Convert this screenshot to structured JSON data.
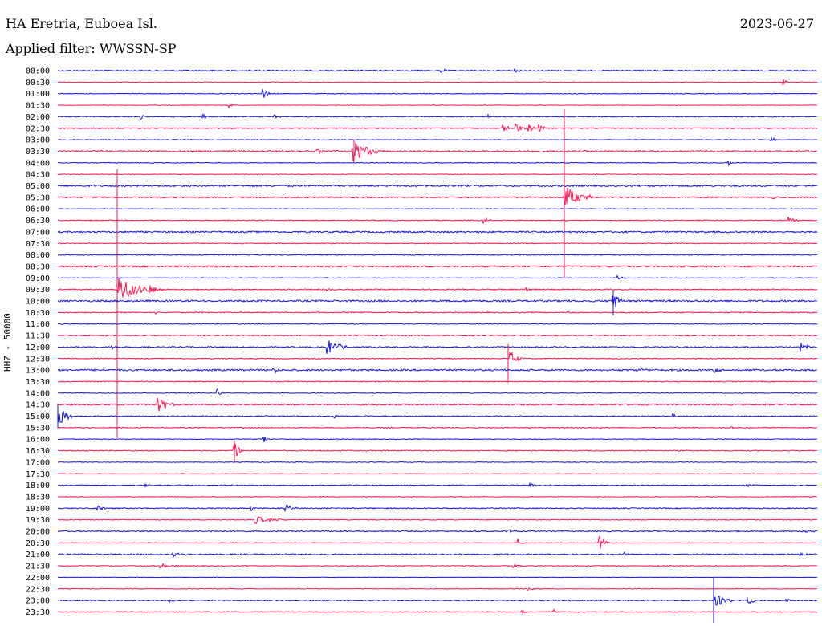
{
  "header": {
    "station": "HA Eretria, Euboea Isl.",
    "date": "2023-06-27",
    "filter": "Applied filter: WWSSN-SP"
  },
  "channel_label": "HHZ - 50000",
  "colors": {
    "even_row": "#1414dc",
    "odd_row": "#ff1450",
    "text": "#000000",
    "background": "#ffffff"
  },
  "chart_data": {
    "type": "line",
    "title": "HA Eretria, Euboea Isl.",
    "ylabel": "HHZ - 50000",
    "grid": false,
    "rows": [
      "00:00",
      "00:30",
      "01:00",
      "01:30",
      "02:00",
      "02:30",
      "03:00",
      "03:30",
      "04:00",
      "04:30",
      "05:00",
      "05:30",
      "06:00",
      "06:30",
      "07:00",
      "07:30",
      "08:00",
      "08:30",
      "09:00",
      "09:30",
      "10:00",
      "10:30",
      "11:00",
      "11:30",
      "12:00",
      "12:30",
      "13:00",
      "13:30",
      "14:00",
      "14:30",
      "15:00",
      "15:30",
      "16:00",
      "16:30",
      "17:00",
      "17:30",
      "18:00",
      "18:30",
      "19:00",
      "19:30",
      "20:00",
      "20:30",
      "21:00",
      "21:30",
      "22:00",
      "22:30",
      "23:00",
      "23:30"
    ],
    "noise": [
      1,
      0.5,
      0.6,
      0.5,
      0.8,
      0.9,
      0.6,
      1.4,
      0.6,
      0.5,
      1.5,
      1.2,
      0.5,
      0.8,
      1.4,
      0.8,
      0.8,
      1.4,
      0.6,
      1.0,
      1.6,
      0.9,
      0.6,
      1.0,
      1.1,
      0.8,
      1.5,
      0.8,
      0.6,
      1.3,
      0.9,
      0.8,
      0.6,
      0.9,
      0.6,
      0.5,
      0.8,
      0.6,
      0.9,
      0.7,
      1.0,
      0.6,
      1.1,
      0.7,
      0.4,
      0.5,
      0.9,
      0.9
    ],
    "events": [
      {
        "row": 0,
        "x": 550,
        "amp": 3,
        "dur": 8
      },
      {
        "row": 0,
        "x": 640,
        "amp": 3,
        "dur": 8
      },
      {
        "row": 1,
        "x": 976,
        "amp": 4,
        "dur": 6
      },
      {
        "row": 2,
        "x": 328,
        "amp": 7,
        "dur": 8
      },
      {
        "row": 3,
        "x": 285,
        "amp": 3,
        "dur": 6
      },
      {
        "row": 4,
        "x": 176,
        "amp": 3,
        "dur": 6
      },
      {
        "row": 4,
        "x": 251,
        "amp": 5,
        "dur": 10
      },
      {
        "row": 4,
        "x": 342,
        "amp": 3,
        "dur": 8
      },
      {
        "row": 4,
        "x": 608,
        "amp": 3,
        "dur": 6
      },
      {
        "row": 4,
        "x": 916,
        "amp": 3,
        "dur": 6
      },
      {
        "row": 5,
        "x": 626,
        "amp": 5,
        "dur": 12
      },
      {
        "row": 5,
        "x": 643,
        "amp": 7,
        "dur": 12
      },
      {
        "row": 5,
        "x": 659,
        "amp": 5,
        "dur": 10
      },
      {
        "row": 5,
        "x": 672,
        "amp": 5,
        "dur": 10
      },
      {
        "row": 6,
        "x": 961,
        "amp": 4,
        "dur": 8
      },
      {
        "row": 7,
        "x": 440,
        "amp": 14,
        "dur": 35
      },
      {
        "row": 7,
        "x": 395,
        "amp": 3,
        "dur": 12
      },
      {
        "row": 8,
        "x": 907,
        "amp": 4,
        "dur": 6
      },
      {
        "row": 11,
        "x": 703,
        "amp": 15,
        "dur": 35
      },
      {
        "row": 11,
        "x": 963,
        "amp": 3,
        "dur": 10
      },
      {
        "row": 13,
        "x": 603,
        "amp": 5,
        "dur": 8
      },
      {
        "row": 13,
        "x": 983,
        "amp": 5,
        "dur": 12
      },
      {
        "row": 18,
        "x": 770,
        "amp": 3,
        "dur": 10
      },
      {
        "row": 19,
        "x": 148,
        "amp": 18,
        "dur": 40
      },
      {
        "row": 19,
        "x": 187,
        "amp": 10,
        "dur": 15
      },
      {
        "row": 19,
        "x": 408,
        "amp": 3,
        "dur": 6
      },
      {
        "row": 19,
        "x": 656,
        "amp": 4,
        "dur": 6
      },
      {
        "row": 20,
        "x": 764,
        "amp": 16,
        "dur": 10
      },
      {
        "row": 21,
        "x": 193,
        "amp": 3,
        "dur": 8
      },
      {
        "row": 21,
        "x": 706,
        "amp": 3,
        "dur": 6
      },
      {
        "row": 24,
        "x": 408,
        "amp": 10,
        "dur": 25
      },
      {
        "row": 24,
        "x": 140,
        "amp": 3,
        "dur": 6
      },
      {
        "row": 24,
        "x": 998,
        "amp": 6,
        "dur": 14
      },
      {
        "row": 25,
        "x": 636,
        "amp": 9,
        "dur": 15
      },
      {
        "row": 26,
        "x": 341,
        "amp": 4,
        "dur": 8
      },
      {
        "row": 26,
        "x": 800,
        "amp": 3,
        "dur": 6
      },
      {
        "row": 26,
        "x": 890,
        "amp": 4,
        "dur": 8
      },
      {
        "row": 28,
        "x": 271,
        "amp": 6,
        "dur": 6
      },
      {
        "row": 29,
        "x": 197,
        "amp": 10,
        "dur": 20
      },
      {
        "row": 30,
        "x": 73,
        "amp": 12,
        "dur": 20
      },
      {
        "row": 30,
        "x": 417,
        "amp": 2,
        "dur": 6
      },
      {
        "row": 30,
        "x": 838,
        "amp": 3,
        "dur": 6
      },
      {
        "row": 31,
        "x": 910,
        "amp": 2,
        "dur": 8
      },
      {
        "row": 32,
        "x": 329,
        "amp": 6,
        "dur": 6
      },
      {
        "row": 33,
        "x": 292,
        "amp": 12,
        "dur": 10
      },
      {
        "row": 36,
        "x": 180,
        "amp": 3,
        "dur": 6
      },
      {
        "row": 36,
        "x": 660,
        "amp": 4,
        "dur": 8
      },
      {
        "row": 36,
        "x": 930,
        "amp": 3,
        "dur": 14
      },
      {
        "row": 38,
        "x": 122,
        "amp": 5,
        "dur": 10
      },
      {
        "row": 38,
        "x": 313,
        "amp": 4,
        "dur": 6
      },
      {
        "row": 38,
        "x": 356,
        "amp": 6,
        "dur": 14
      },
      {
        "row": 39,
        "x": 318,
        "amp": 5,
        "dur": 40
      },
      {
        "row": 40,
        "x": 260,
        "amp": 3,
        "dur": 8
      },
      {
        "row": 40,
        "x": 632,
        "amp": 3,
        "dur": 8
      },
      {
        "row": 40,
        "x": 1000,
        "amp": 3,
        "dur": 14
      },
      {
        "row": 41,
        "x": 646,
        "amp": 6,
        "dur": 6
      },
      {
        "row": 41,
        "x": 747,
        "amp": 9,
        "dur": 12
      },
      {
        "row": 42,
        "x": 216,
        "amp": 3,
        "dur": 30
      },
      {
        "row": 42,
        "x": 777,
        "amp": 3,
        "dur": 8
      },
      {
        "row": 42,
        "x": 997,
        "amp": 3,
        "dur": 10
      },
      {
        "row": 43,
        "x": 200,
        "amp": 3,
        "dur": 25
      },
      {
        "row": 43,
        "x": 640,
        "amp": 3,
        "dur": 8
      },
      {
        "row": 45,
        "x": 658,
        "amp": 3,
        "dur": 16
      },
      {
        "row": 46,
        "x": 212,
        "amp": 3,
        "dur": 8
      },
      {
        "row": 46,
        "x": 892,
        "amp": 10,
        "dur": 20
      },
      {
        "row": 46,
        "x": 932,
        "amp": 4,
        "dur": 16
      },
      {
        "row": 46,
        "x": 980,
        "amp": 2,
        "dur": 6
      },
      {
        "row": 47,
        "x": 651,
        "amp": 3,
        "dur": 6
      },
      {
        "row": 47,
        "x": 690,
        "amp": 4,
        "dur": 10
      }
    ],
    "spikes": [
      {
        "row": 19,
        "x": 146,
        "up": 150,
        "down": 185
      },
      {
        "row": 11,
        "x": 703,
        "up": 110,
        "down": 100
      },
      {
        "row": 25,
        "x": 633,
        "up": 18,
        "down": 30
      },
      {
        "row": 46,
        "x": 889,
        "up": 28,
        "down": 28
      },
      {
        "row": 30,
        "x": 72,
        "up": 15,
        "down": 15
      },
      {
        "row": 20,
        "x": 764,
        "up": 12,
        "down": 18
      },
      {
        "row": 7,
        "x": 441,
        "up": 14,
        "down": 14
      },
      {
        "row": 33,
        "x": 292,
        "up": 12,
        "down": 14
      }
    ]
  }
}
